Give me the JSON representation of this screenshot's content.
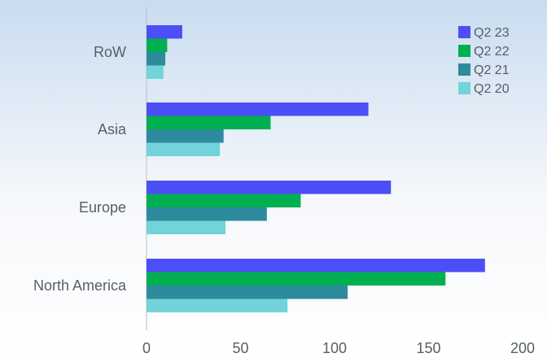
{
  "chart_data": {
    "type": "bar",
    "orientation": "horizontal",
    "categories": [
      "RoW",
      "Asia",
      "Europe",
      "North America"
    ],
    "series": [
      {
        "name": "Q2 23",
        "color": "#4c4ff5",
        "values": [
          19,
          118,
          130,
          180
        ]
      },
      {
        "name": "Q2 22",
        "color": "#00b050",
        "values": [
          11,
          66,
          82,
          159
        ]
      },
      {
        "name": "Q2 21",
        "color": "#2e8b9e",
        "values": [
          10,
          41,
          64,
          107
        ]
      },
      {
        "name": "Q2 20",
        "color": "#72d3da",
        "values": [
          9,
          39,
          42,
          75
        ]
      }
    ],
    "xlim": [
      0,
      200
    ],
    "xticks": [
      0,
      50,
      100,
      150,
      200
    ],
    "grid": false,
    "legend_position": "top-right",
    "title": "",
    "xlabel": "",
    "ylabel": ""
  }
}
